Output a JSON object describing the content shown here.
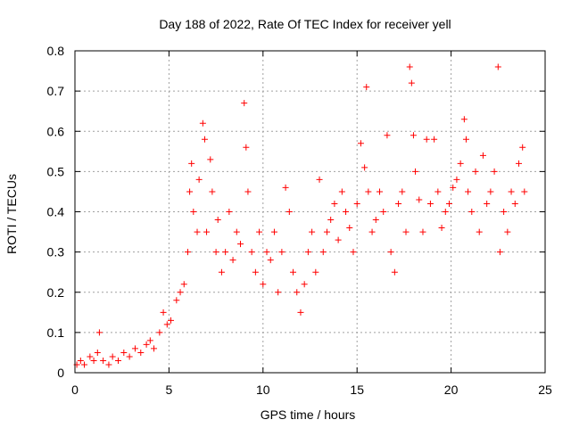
{
  "chart_data": {
    "type": "scatter",
    "title": "Day 188 of 2022, Rate Of TEC Index for receiver yell",
    "xlabel": "GPS time / hours",
    "ylabel": "ROTI / TECUs",
    "xlim": [
      0,
      25
    ],
    "ylim": [
      0,
      0.8
    ],
    "xticks": [
      0,
      5,
      10,
      15,
      20,
      25
    ],
    "yticks": [
      0,
      0.1,
      0.2,
      0.3,
      0.4,
      0.5,
      0.6,
      0.7,
      0.8
    ],
    "grid": true,
    "marker": "+",
    "colors": {
      "marker": "#ff0000",
      "grid": "#a0a0a0",
      "axis": "#000000"
    },
    "series": [
      {
        "x": [
          0.1,
          0.3,
          0.5,
          0.8,
          1.0,
          1.2,
          1.3,
          1.5,
          1.8,
          2.0,
          2.3,
          2.6,
          2.9,
          3.2,
          3.5,
          3.8,
          4.0,
          4.2,
          4.5,
          4.7,
          4.9,
          5.1,
          5.4,
          5.6,
          5.8,
          6.0,
          6.1,
          6.2,
          6.3,
          6.5,
          6.6,
          6.8,
          6.9,
          7.0,
          7.2,
          7.3,
          7.5,
          7.6,
          7.8,
          8.0,
          8.2,
          8.4,
          8.6,
          8.8,
          9.0,
          9.1,
          9.2,
          9.4,
          9.6,
          9.8,
          10.0,
          10.2,
          10.4,
          10.6,
          10.8,
          11.0,
          11.2,
          11.4,
          11.6,
          11.8,
          12.0,
          12.2,
          12.4,
          12.6,
          12.8,
          13.0,
          13.2,
          13.4,
          13.6,
          13.8,
          14.0,
          14.2,
          14.4,
          14.6,
          14.8,
          15.0,
          15.2,
          15.4,
          15.5,
          15.6,
          15.8,
          16.0,
          16.2,
          16.4,
          16.6,
          16.8,
          17.0,
          17.2,
          17.4,
          17.6,
          17.8,
          17.9,
          18.0,
          18.1,
          18.3,
          18.5,
          18.7,
          18.9,
          19.1,
          19.3,
          19.5,
          19.7,
          19.9,
          20.1,
          20.3,
          20.5,
          20.7,
          20.8,
          20.9,
          21.1,
          21.3,
          21.5,
          21.7,
          21.9,
          22.1,
          22.3,
          22.5,
          22.6,
          22.8,
          23.0,
          23.2,
          23.4,
          23.6,
          23.8,
          23.9
        ],
        "y": [
          0.02,
          0.03,
          0.02,
          0.04,
          0.03,
          0.05,
          0.1,
          0.03,
          0.02,
          0.04,
          0.03,
          0.05,
          0.04,
          0.06,
          0.05,
          0.07,
          0.08,
          0.06,
          0.1,
          0.15,
          0.12,
          0.13,
          0.18,
          0.2,
          0.22,
          0.3,
          0.45,
          0.52,
          0.4,
          0.35,
          0.48,
          0.62,
          0.58,
          0.35,
          0.53,
          0.45,
          0.3,
          0.38,
          0.25,
          0.3,
          0.4,
          0.28,
          0.35,
          0.32,
          0.67,
          0.56,
          0.45,
          0.3,
          0.25,
          0.35,
          0.22,
          0.3,
          0.28,
          0.35,
          0.2,
          0.3,
          0.46,
          0.4,
          0.25,
          0.2,
          0.15,
          0.22,
          0.3,
          0.35,
          0.25,
          0.48,
          0.3,
          0.35,
          0.38,
          0.42,
          0.33,
          0.45,
          0.4,
          0.36,
          0.3,
          0.42,
          0.57,
          0.51,
          0.71,
          0.45,
          0.35,
          0.38,
          0.45,
          0.4,
          0.59,
          0.3,
          0.25,
          0.42,
          0.45,
          0.35,
          0.76,
          0.72,
          0.59,
          0.5,
          0.43,
          0.35,
          0.58,
          0.42,
          0.58,
          0.45,
          0.36,
          0.4,
          0.42,
          0.46,
          0.48,
          0.52,
          0.63,
          0.58,
          0.45,
          0.4,
          0.5,
          0.35,
          0.54,
          0.42,
          0.45,
          0.5,
          0.76,
          0.3,
          0.4,
          0.35,
          0.45,
          0.42,
          0.52,
          0.56,
          0.45
        ]
      }
    ]
  }
}
